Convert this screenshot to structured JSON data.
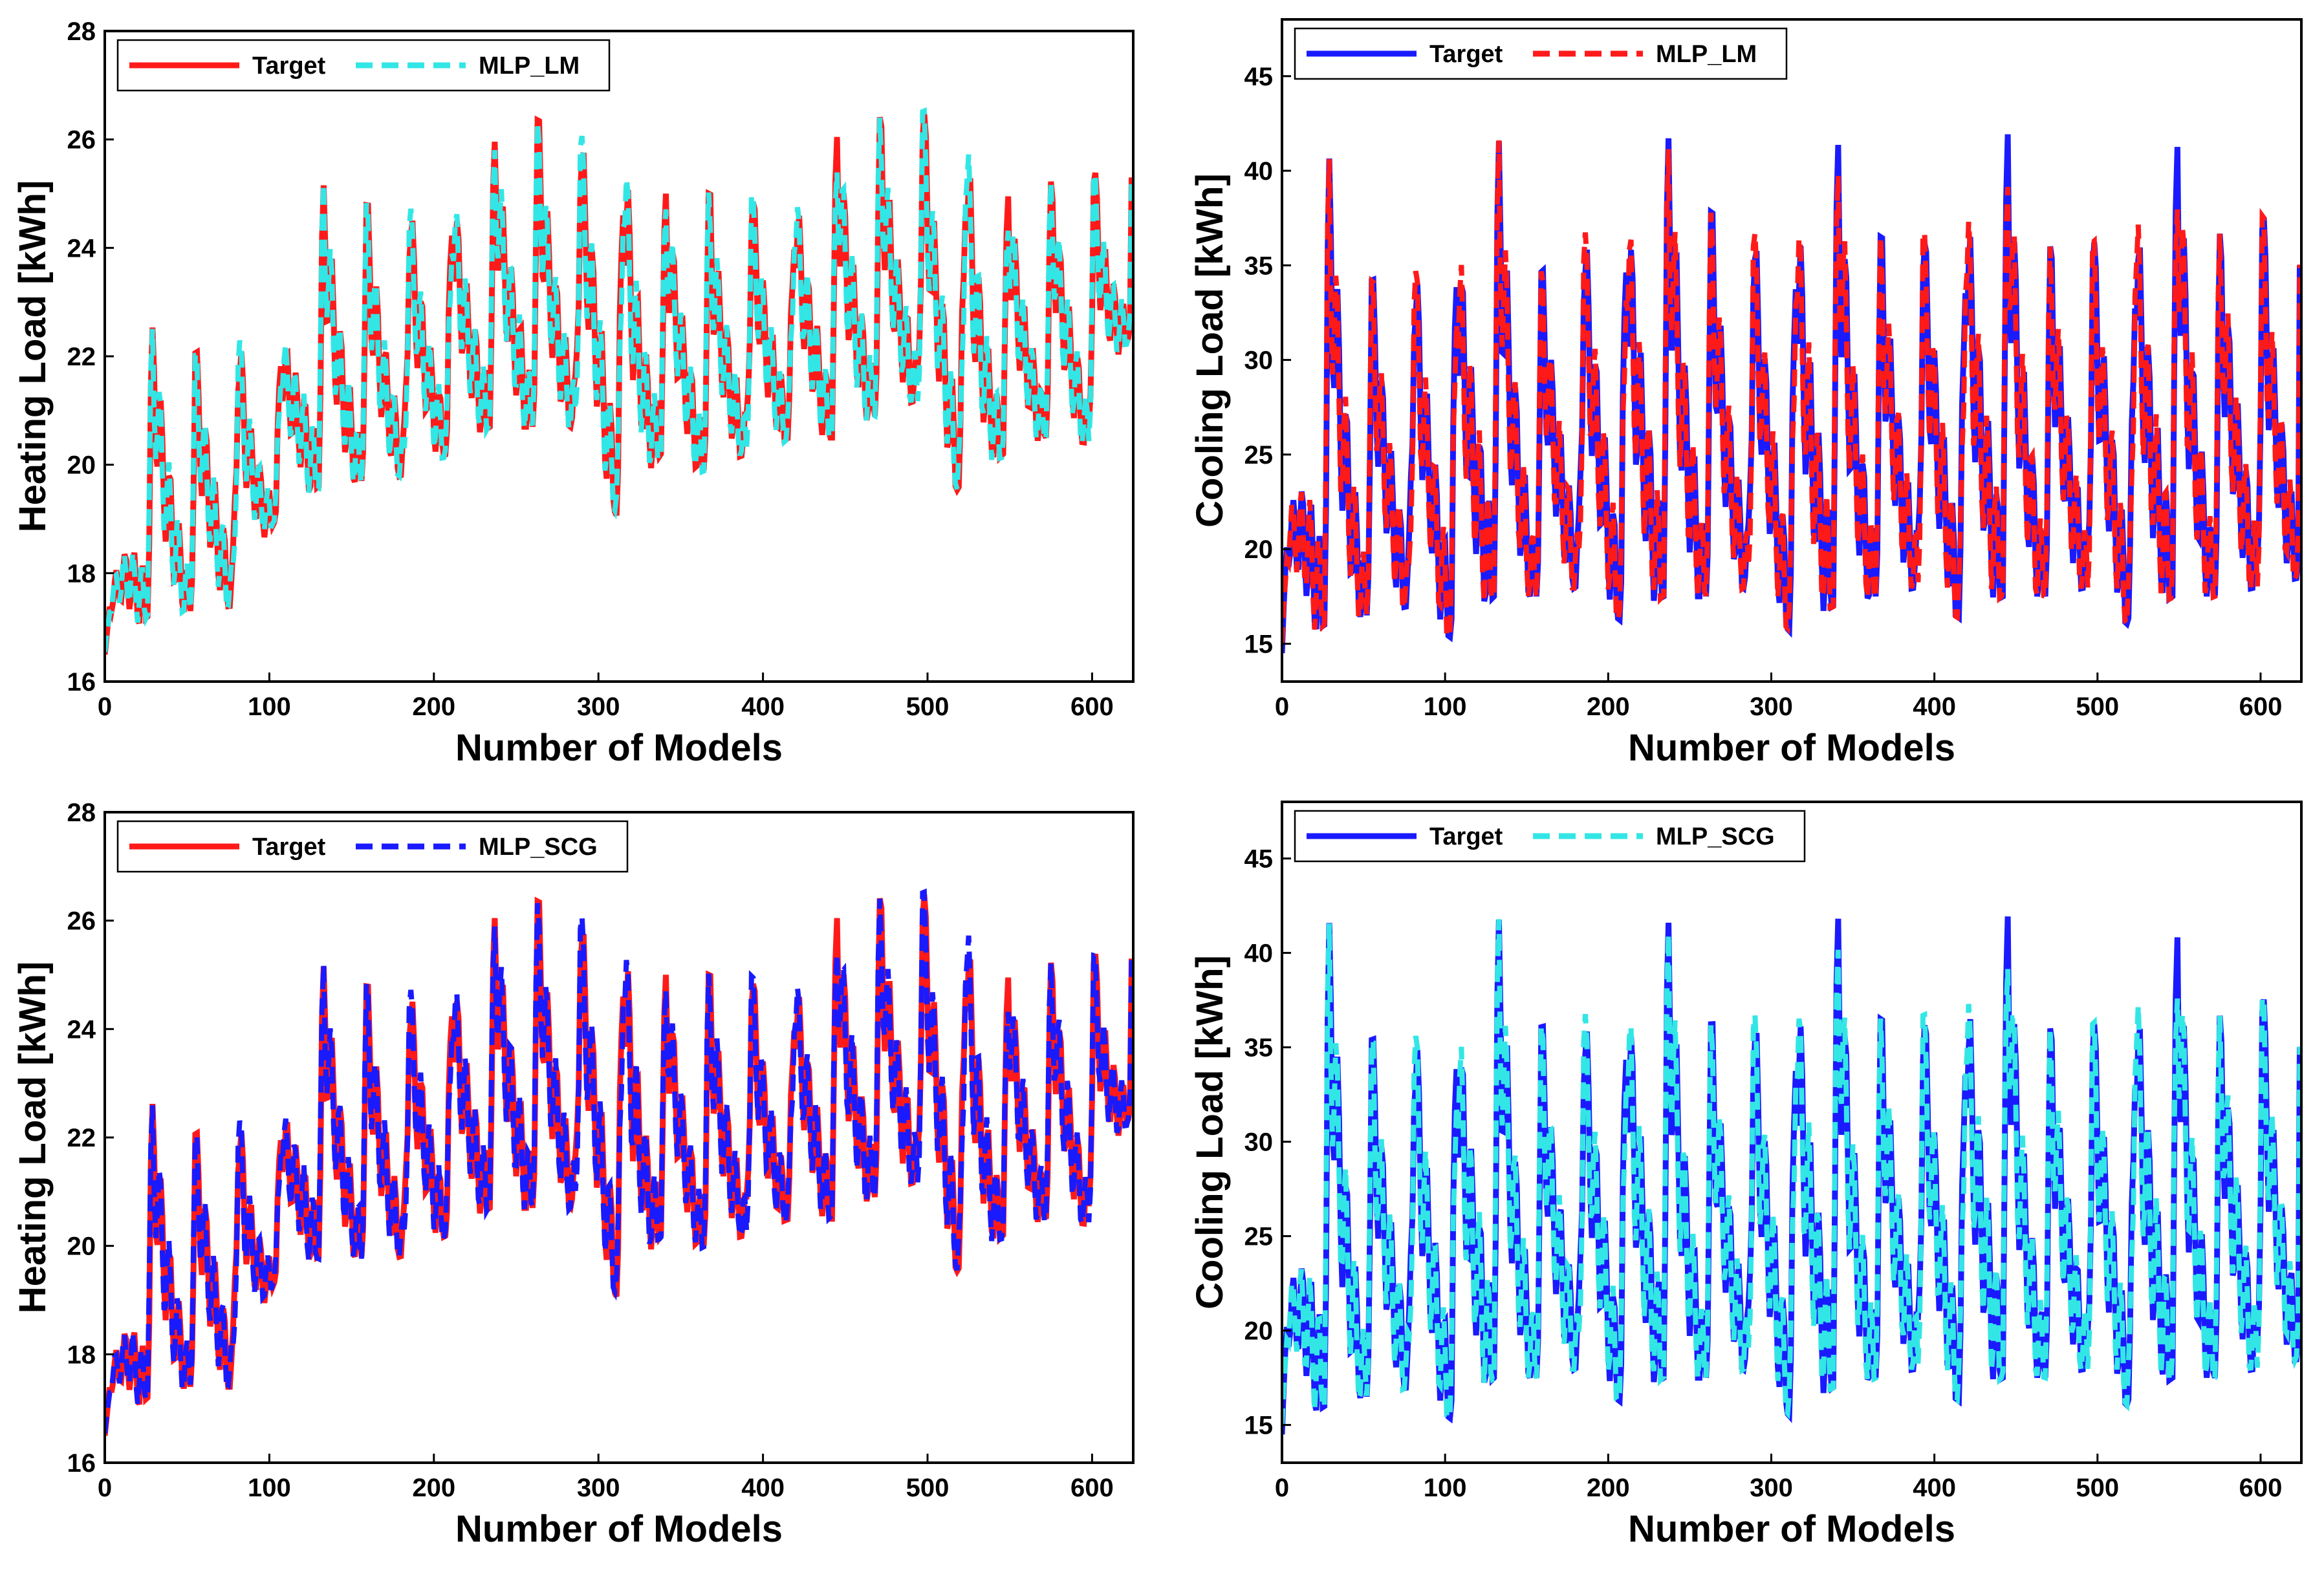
{
  "chart_data": [
    {
      "type": "line",
      "xlabel": "Number of Models",
      "ylabel": "Heating Load [kWh]",
      "xlim": [
        0,
        625
      ],
      "ylim": [
        16,
        28
      ],
      "xticks": [
        0,
        100,
        200,
        300,
        400,
        500,
        600
      ],
      "yticks": [
        16,
        18,
        20,
        22,
        24,
        26,
        28
      ],
      "legend_position": "top-left",
      "series": [
        {
          "name": "Target",
          "color": "#ff1a1a",
          "style": "solid"
        },
        {
          "name": "MLP_LM",
          "color": "#33e6e6",
          "style": "dashed"
        }
      ],
      "sample_points": {
        "x": [
          0,
          26,
          52,
          78,
          104,
          130,
          156,
          182,
          208,
          234,
          260,
          286,
          312,
          338,
          364,
          390,
          416,
          442,
          468,
          494,
          520,
          546,
          572,
          598,
          624
        ],
        "target_peaks": [
          16.8,
          22.6,
          22.0,
          22.5,
          21.9,
          25.2,
          24.8,
          24.7,
          25.0,
          25.9,
          26.4,
          26.0,
          26.2,
          25.0,
          25.0,
          25.0,
          24.9,
          26.0,
          26.4,
          26.5,
          26.4,
          25.0,
          25.2,
          25.4,
          25.3
        ],
        "target_troughs": [
          16.5,
          17.2,
          17.3,
          17.4,
          19.0,
          19.6,
          19.7,
          19.8,
          20.2,
          20.7,
          20.7,
          20.7,
          19.0,
          20.2,
          19.9,
          20.2,
          20.5,
          20.5,
          20.9,
          21.2,
          19.4,
          20.2,
          20.5,
          20.4,
          22.5
        ]
      }
    },
    {
      "type": "line",
      "xlabel": "Number of Models",
      "ylabel": "Cooling Load [kWh]",
      "xlim": [
        0,
        625
      ],
      "ylim": [
        13,
        48
      ],
      "xticks": [
        0,
        100,
        200,
        300,
        400,
        500,
        600
      ],
      "yticks": [
        15,
        20,
        25,
        30,
        35,
        40,
        45
      ],
      "legend_position": "top-left",
      "series": [
        {
          "name": "Target",
          "color": "#1a1aff",
          "style": "solid"
        },
        {
          "name": "MLP_LM",
          "color": "#ff1a1a",
          "style": "dashed"
        }
      ],
      "sample_points": {
        "x": [
          0,
          26,
          52,
          78,
          104,
          130,
          156,
          182,
          208,
          234,
          260,
          286,
          312,
          338,
          364,
          390,
          416,
          442,
          468,
          494,
          520,
          546,
          572,
          598,
          624
        ],
        "target_peaks": [
          18.0,
          41.5,
          34.1,
          35.0,
          36.2,
          42.5,
          34.4,
          36.5,
          38.2,
          42.2,
          38.0,
          36.4,
          38.1,
          42.0,
          36.5,
          36.5,
          38.2,
          42.7,
          36.0,
          36.0,
          37.6,
          42.3,
          36.5,
          38.0,
          35.0
        ],
        "target_troughs": [
          14.5,
          16.0,
          16.5,
          17.0,
          15.3,
          17.5,
          17.5,
          18.0,
          16.2,
          17.5,
          17.5,
          18.0,
          15.6,
          17.0,
          17.5,
          18.0,
          16.3,
          17.5,
          17.5,
          18.0,
          15.9,
          17.5,
          17.5,
          18.0,
          18.5
        ]
      }
    },
    {
      "type": "line",
      "xlabel": "Number of Models",
      "ylabel": "Heating Load [kWh]",
      "xlim": [
        0,
        625
      ],
      "ylim": [
        16,
        28
      ],
      "xticks": [
        0,
        100,
        200,
        300,
        400,
        500,
        600
      ],
      "yticks": [
        16,
        18,
        20,
        22,
        24,
        26,
        28
      ],
      "legend_position": "top-left",
      "series": [
        {
          "name": "Target",
          "color": "#ff1a1a",
          "style": "solid"
        },
        {
          "name": "MLP_SCG",
          "color": "#1a1aff",
          "style": "dashed"
        }
      ],
      "sample_points": {
        "x": [
          0,
          26,
          52,
          78,
          104,
          130,
          156,
          182,
          208,
          234,
          260,
          286,
          312,
          338,
          364,
          390,
          416,
          442,
          468,
          494,
          520,
          546,
          572,
          598,
          624
        ],
        "target_peaks": [
          16.8,
          22.7,
          22.0,
          22.5,
          22.0,
          25.2,
          24.8,
          24.7,
          25.0,
          26.0,
          26.4,
          26.0,
          26.2,
          25.0,
          25.0,
          25.0,
          24.9,
          26.0,
          26.4,
          26.5,
          26.4,
          25.0,
          25.2,
          25.4,
          25.3
        ],
        "target_troughs": [
          16.5,
          17.2,
          17.4,
          17.4,
          19.4,
          19.8,
          19.8,
          19.8,
          20.2,
          20.7,
          20.7,
          20.7,
          19.0,
          20.2,
          20.0,
          20.2,
          20.5,
          20.5,
          20.9,
          21.2,
          19.4,
          20.2,
          20.5,
          20.4,
          22.5
        ]
      }
    },
    {
      "type": "line",
      "xlabel": "Number of Models",
      "ylabel": "Cooling Load [kWh]",
      "xlim": [
        0,
        625
      ],
      "ylim": [
        13,
        48
      ],
      "xticks": [
        0,
        100,
        200,
        300,
        400,
        500,
        600
      ],
      "yticks": [
        15,
        20,
        25,
        30,
        35,
        40,
        45
      ],
      "legend_position": "top-left",
      "series": [
        {
          "name": "Target",
          "color": "#1a1aff",
          "style": "solid"
        },
        {
          "name": "MLP_SCG",
          "color": "#33e6e6",
          "style": "dashed"
        }
      ],
      "sample_points": {
        "x": [
          0,
          26,
          52,
          78,
          104,
          130,
          156,
          182,
          208,
          234,
          260,
          286,
          312,
          338,
          364,
          390,
          416,
          442,
          468,
          494,
          520,
          546,
          572,
          598,
          624
        ],
        "target_peaks": [
          18.0,
          42.4,
          35.3,
          36.1,
          36.2,
          42.5,
          36.0,
          36.6,
          37.8,
          42.3,
          36.2,
          36.4,
          38.1,
          42.5,
          36.5,
          36.5,
          38.2,
          42.7,
          36.0,
          36.0,
          37.8,
          41.8,
          36.5,
          38.0,
          35.0
        ],
        "target_troughs": [
          14.5,
          16.0,
          16.5,
          17.0,
          15.3,
          17.5,
          17.5,
          18.0,
          16.2,
          17.5,
          17.5,
          18.0,
          15.4,
          17.0,
          17.5,
          18.0,
          16.2,
          17.5,
          17.5,
          18.0,
          15.9,
          17.5,
          17.5,
          18.0,
          18.5
        ]
      }
    }
  ]
}
